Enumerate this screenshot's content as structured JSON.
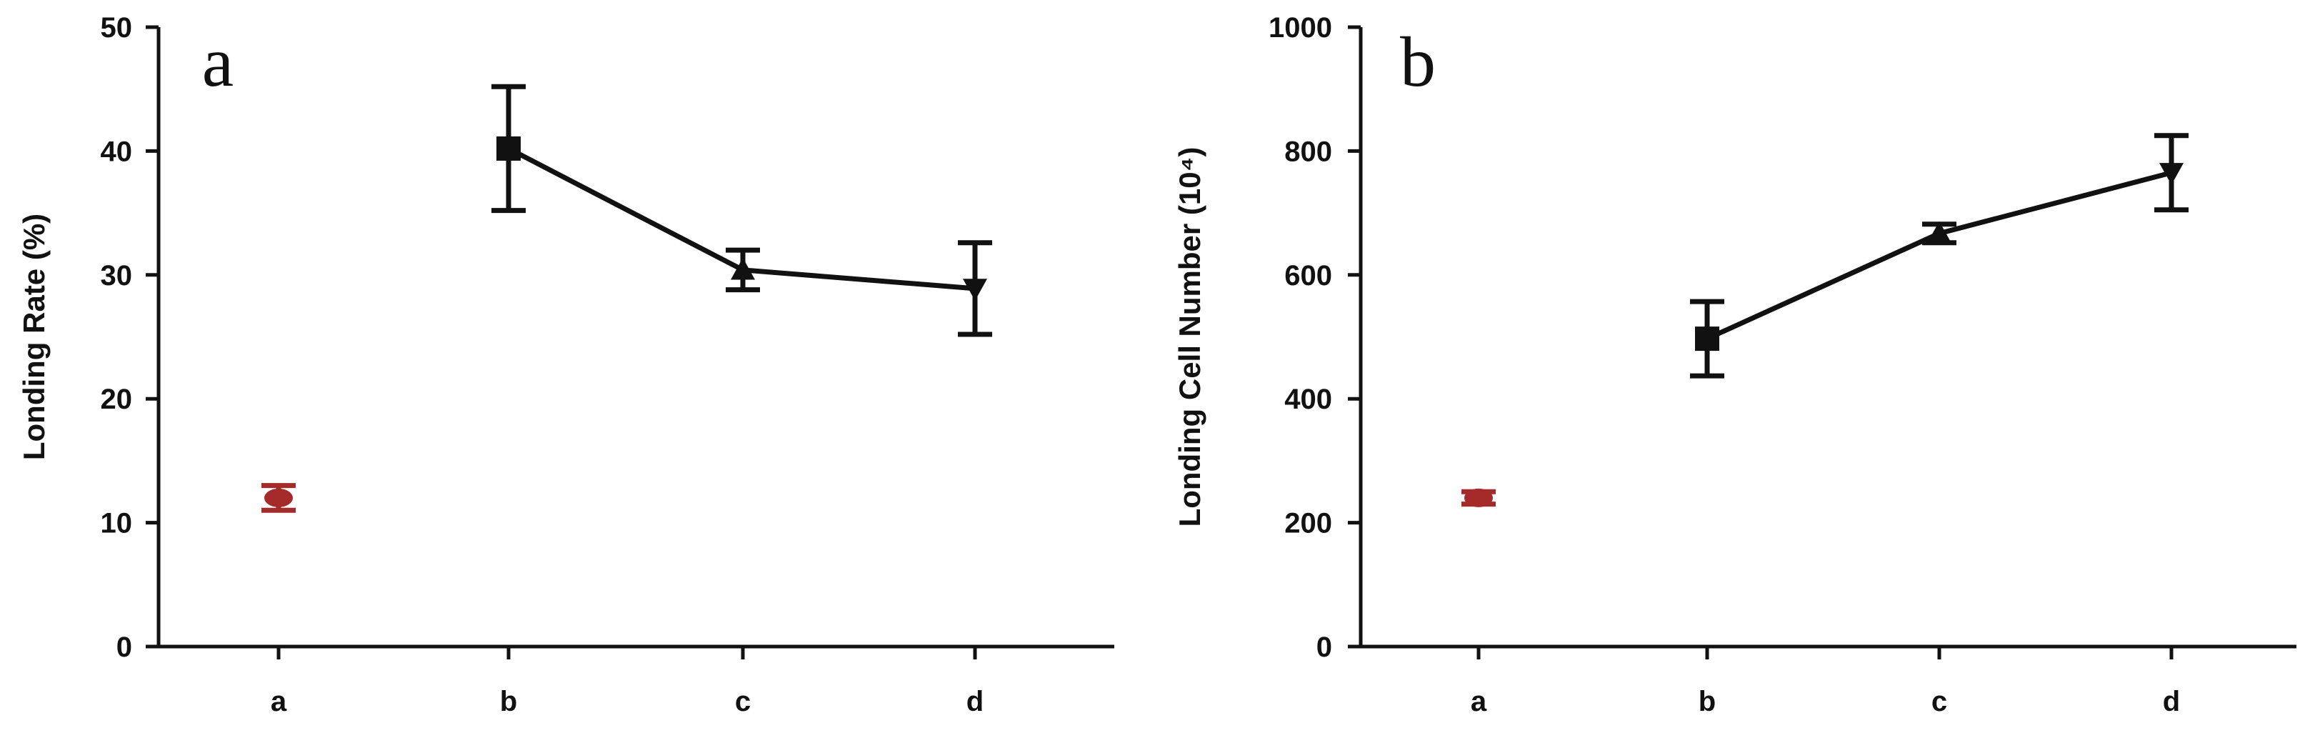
{
  "chart_data": [
    {
      "panel_label": "a",
      "type": "line",
      "ylabel": "Londing Rate  (%)",
      "xlabel": "",
      "categories": [
        "a",
        "b",
        "c",
        "d"
      ],
      "ylim": [
        0,
        50
      ],
      "yticks": [
        "0",
        "10",
        "20",
        "30",
        "40",
        "50"
      ],
      "grid": false,
      "series": [
        {
          "points": [
            {
              "x": "a",
              "y": 12,
              "err": 1,
              "marker": "circle",
              "color": "#a52a2a",
              "connected": false
            },
            {
              "x": "b",
              "y": 40.2,
              "err": 5,
              "marker": "square",
              "color": "#111111",
              "connected": true
            },
            {
              "x": "c",
              "y": 30.4,
              "err": 1.6,
              "marker": "triangle-up",
              "color": "#111111",
              "connected": true
            },
            {
              "x": "d",
              "y": 28.9,
              "err": 3.7,
              "marker": "triangle-down",
              "color": "#111111",
              "connected": true
            }
          ]
        }
      ]
    },
    {
      "panel_label": "b",
      "type": "line",
      "ylabel": "Londing Cell  Number (10⁴)",
      "xlabel": "",
      "categories": [
        "a",
        "b",
        "c",
        "d"
      ],
      "ylim": [
        0,
        1000
      ],
      "yticks": [
        "0",
        "200",
        "400",
        "600",
        "800",
        "1000"
      ],
      "grid": false,
      "series": [
        {
          "points": [
            {
              "x": "a",
              "y": 240,
              "err": 10,
              "marker": "circle",
              "color": "#a52a2a",
              "connected": false
            },
            {
              "x": "b",
              "y": 497,
              "err": 60,
              "marker": "square",
              "color": "#111111",
              "connected": true
            },
            {
              "x": "c",
              "y": 667,
              "err": 15,
              "marker": "triangle-up",
              "color": "#111111",
              "connected": true
            },
            {
              "x": "d",
              "y": 765,
              "err": 60,
              "marker": "triangle-down",
              "color": "#111111",
              "connected": true
            }
          ]
        }
      ]
    }
  ]
}
